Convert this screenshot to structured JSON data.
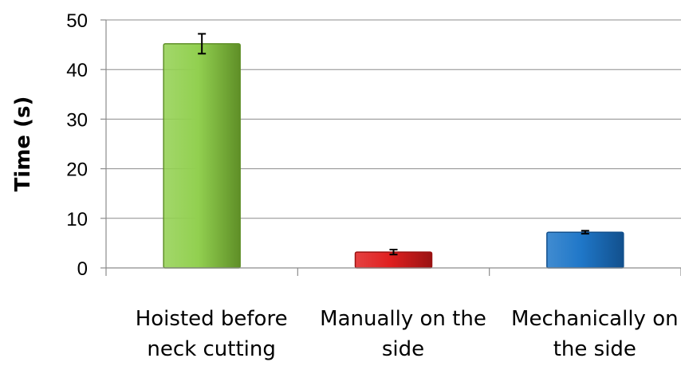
{
  "chart_data": {
    "type": "bar",
    "title": "",
    "xlabel": "",
    "ylabel": "Time (s)",
    "ylim": [
      0,
      50
    ],
    "yticks": [
      0,
      10,
      20,
      30,
      40,
      50
    ],
    "grid": true,
    "legend": "none",
    "categories": [
      [
        "Hoisted before",
        "neck cutting"
      ],
      [
        "Manually on the",
        "side"
      ],
      [
        "Mechanically on",
        "the side"
      ]
    ],
    "values": [
      45.2,
      3.2,
      7.2
    ],
    "errors": [
      2.0,
      0.5,
      0.3
    ],
    "colors": [
      "#92d050",
      "#e02020",
      "#1f77c8"
    ],
    "edge_colors": [
      "#5f8f27",
      "#9a1212",
      "#12508d"
    ]
  }
}
